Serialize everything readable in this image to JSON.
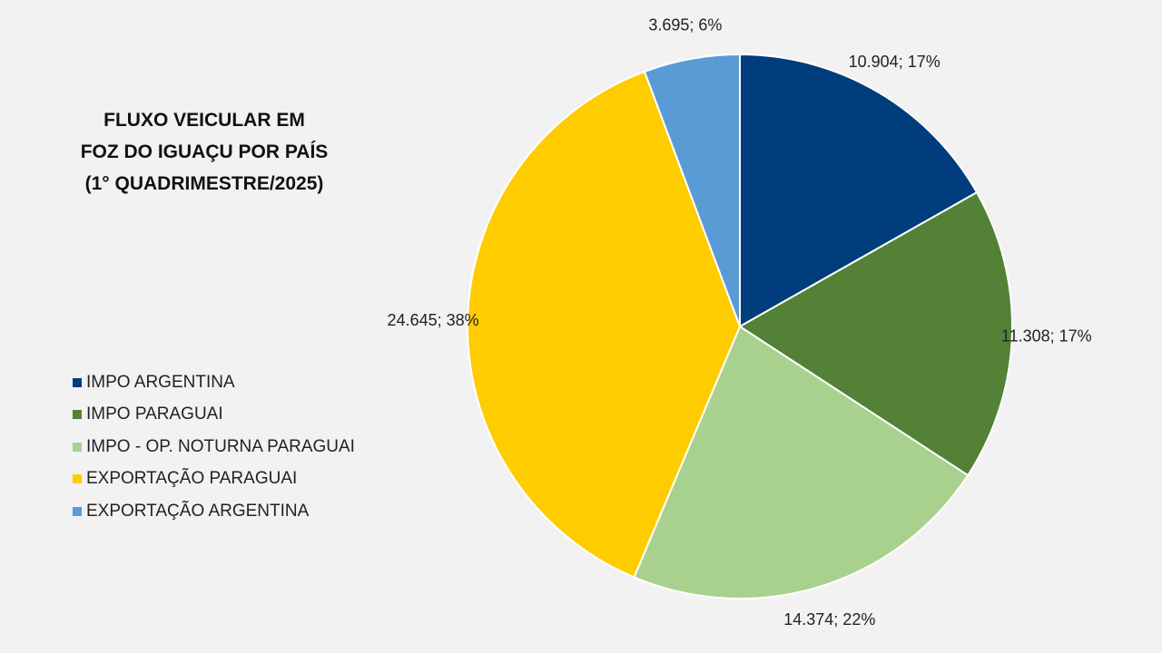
{
  "chart_data": {
    "type": "pie",
    "title_lines": [
      "FLUXO VEICULAR EM",
      "FOZ DO IGUAÇU POR PAÍS",
      "(1° QUADRIMESTRE/2025)"
    ],
    "categories": [
      "IMPO ARGENTINA",
      "IMPO PARAGUAI",
      "IMPO - OP. NOTURNA PARAGUAI",
      "EXPORTAÇÃO PARAGUAI",
      "EXPORTAÇÃO ARGENTINA"
    ],
    "values": [
      10904,
      11308,
      14374,
      24645,
      3695
    ],
    "data_labels": [
      "10.904; 17%",
      "11.308; 17%",
      "14.374; 22%",
      "24.645; 38%",
      "3.695; 6%"
    ],
    "colors": [
      "#003d7c",
      "#538135",
      "#a9d18e",
      "#ffcc00",
      "#5b9bd5"
    ],
    "legend_position": "left"
  }
}
